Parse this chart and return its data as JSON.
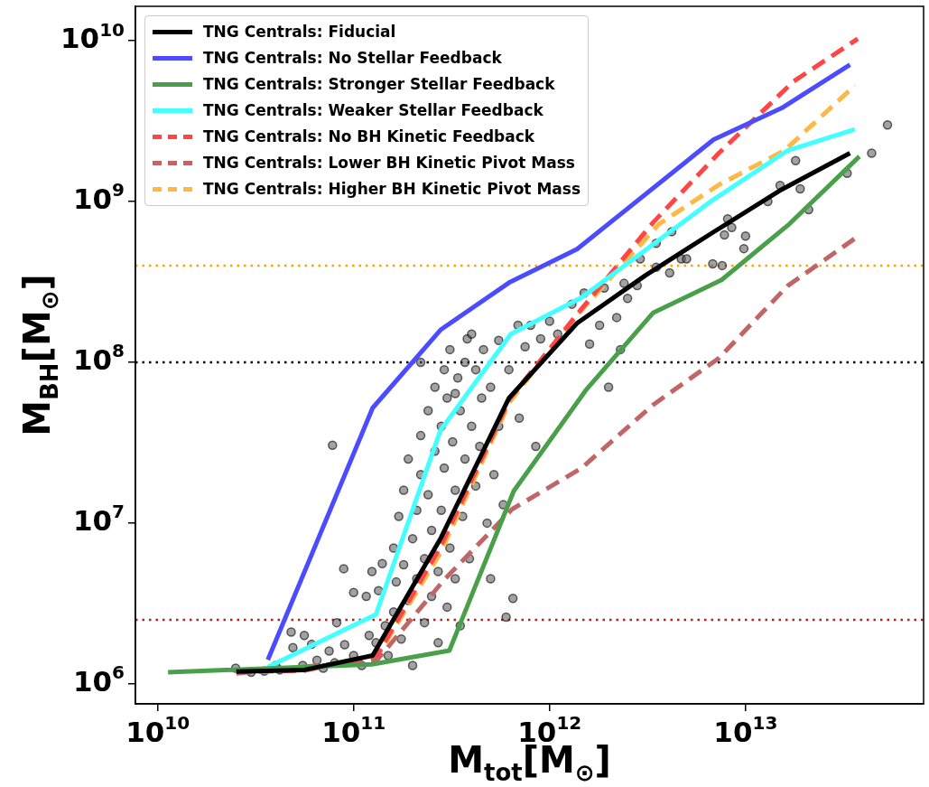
{
  "chart_data": {
    "type": "line",
    "xlabel": "M$_{tot}$[M$_{⊙}$]",
    "ylabel": "M$_{BH}$[M$_{⊙}$]",
    "log": "xy",
    "legend": "top left",
    "xlim": [
      7700000000.0,
      81000000000000.0
    ],
    "ylim": [
      750000.0,
      16400000000.0
    ],
    "xticks": [
      {
        "value": 10000000000.0,
        "label": "10$^{10}$"
      },
      {
        "value": 100000000000.0,
        "label": "10$^{11}$"
      },
      {
        "value": 1000000000000.0,
        "label": "10$^{12}$"
      },
      {
        "value": 10000000000000.0,
        "label": "10$^{13}$"
      }
    ],
    "yticks": [
      {
        "value": 1000000.0,
        "label": "10$^{6}$"
      },
      {
        "value": 10000000.0,
        "label": "10$^{7}$"
      },
      {
        "value": 100000000.0,
        "label": "10$^{8}$"
      },
      {
        "value": 1000000000.0,
        "label": "10$^{9}$"
      },
      {
        "value": 10000000000.0,
        "label": "10$^{10}$"
      }
    ],
    "ref_lines": [
      {
        "axis": "y",
        "value": 400000000.0,
        "color": "#ffa500",
        "line_style": "dotted"
      },
      {
        "axis": "y",
        "value": 100000000.0,
        "color": "#000000",
        "line_style": "dotted"
      },
      {
        "axis": "y",
        "value": 2500000.0,
        "color": "#b22222",
        "line_style": "dotted"
      }
    ],
    "series": [
      {
        "name": "TNG Centrals: Fiducial",
        "color": "#000000",
        "line_style": "solid",
        "x": [
          25200000000.0,
          56100000000.0,
          125000000000.0,
          279000000000.0,
          621000000000.0,
          1380000000000.0,
          3080000000000.0,
          6870000000000.0,
          15300000000000.0,
          34100000000000.0
        ],
        "values": [
          1190000.0,
          1220000.0,
          1500000.0,
          8100000.0,
          60000000.0,
          175000000.0,
          347000000.0,
          647000000.0,
          1190000000.0,
          2000000000.0
        ]
      },
      {
        "name": "TNG Centrals: No Stellar Feedback",
        "color": "#4b4bff",
        "line_style": "solid",
        "x": [
          36500000000.0,
          125000000000.0,
          279000000000.0,
          621000000000.0,
          1380000000000.0,
          6870000000000.0,
          15300000000000.0,
          34100000000000.0
        ],
        "values": [
          1410000.0,
          52000000.0,
          160000000.0,
          313000000.0,
          506000000.0,
          2430000000.0,
          3820000000.0,
          7110000000.0
        ]
      },
      {
        "name": "TNG Centrals: Stronger Stellar Feedback",
        "color": "#4aa04a",
        "line_style": "solid",
        "x": [
          11300000000.0,
          124000000000.0,
          308000000000.0,
          656000000000.0,
          1530000000000.0,
          3370000000000.0,
          7550000000000.0,
          16700000000000.0,
          38100000000000.0
        ],
        "values": [
          1180000.0,
          1320000.0,
          1610000.0,
          15800000.0,
          67000000.0,
          203000000.0,
          326000000.0,
          724000000.0,
          1910000000.0
        ]
      },
      {
        "name": "TNG Centrals: Weaker Stellar Feedback",
        "color": "#44ffff",
        "line_style": "solid",
        "x": [
          36500000000.0,
          130000000000.0,
          277000000000.0,
          634000000000.0,
          1450000000000.0,
          6780000000000.0,
          16400000000000.0,
          36100000000000.0
        ],
        "values": [
          1270000.0,
          2700000.0,
          37600000.0,
          150000000.0,
          252000000.0,
          1020000000.0,
          2080000000.0,
          2820000000.0
        ]
      },
      {
        "name": "TNG Centrals: No BH Kinetic Feedback",
        "color": "#ff4545",
        "line_style": "dashed",
        "x": [
          25200000000.0,
          56100000000.0,
          132000000000.0,
          277000000000.0,
          625000000000.0,
          1400000000000.0,
          3370000000000.0,
          7300000000000.0,
          17600000000000.0,
          37400000000000.0
        ],
        "values": [
          1190000.0,
          1210000.0,
          1510000.0,
          7100000.0,
          59000000.0,
          203000000.0,
          740000000.0,
          2000000000.0,
          5600000000.0,
          10300000000.0
        ]
      },
      {
        "name": "TNG Centrals: Lower BH Kinetic Pivot Mass",
        "color": "#c06666",
        "line_style": "dashed",
        "x": [
          25200000000.0,
          132000000000.0,
          288000000000.0,
          644000000000.0,
          1450000000000.0,
          3370000000000.0,
          7300000000000.0,
          16400000000000.0,
          36700000000000.0
        ],
        "values": [
          1160000.0,
          1410000.0,
          4400000.0,
          12200000.0,
          21900000.0,
          54300000.0,
          106000000.0,
          299000000.0,
          597000000.0
        ]
      },
      {
        "name": "TNG Centrals: Higher BH Kinetic Pivot Mass",
        "color": "#ffb846",
        "line_style": "dashed",
        "x": [
          25200000000.0,
          56100000000.0,
          132000000000.0,
          277000000000.0,
          625000000000.0,
          1400000000000.0,
          3610000000000.0,
          7300000000000.0,
          15800000000000.0,
          36100000000000.0
        ],
        "values": [
          1190000.0,
          1210000.0,
          1480000.0,
          6500000.0,
          56600000.0,
          200000000.0,
          724000000.0,
          1270000000.0,
          2080000000.0,
          5270000000.0
        ]
      },
      {
        "type": "scatter",
        "color": "#555555",
        "marker": "circle",
        "x": [
          25000000000.0,
          30000000000.0,
          35000000000.0,
          40000000000.0,
          42000000000.0,
          49000000000.0,
          48000000000.0,
          56000000000.0,
          55000000000.0,
          61000000000.0,
          65000000000.0,
          70000000000.0,
          75000000000.0,
          82000000000.0,
          80000000000.0,
          78000000000.0,
          89000000000.0,
          90000000000.0,
          100000000000.0,
          100000000000.0,
          110000000000.0,
          116000000000.0,
          124000000000.0,
          120000000000.0,
          130000000000.0,
          134000000000.0,
          140000000000.0,
          145000000000.0,
          150000000000.0,
          160000000000.0,
          160000000000.0,
          165000000000.0,
          170000000000.0,
          175000000000.0,
          180000000000.0,
          180000000000.0,
          190000000000.0,
          190000000000.0,
          200000000000.0,
          200000000000.0,
          210000000000.0,
          210000000000.0,
          220000000000.0,
          220000000000.0,
          230000000000.0,
          230000000000.0,
          240000000000.0,
          240000000000.0,
          250000000000.0,
          250000000000.0,
          260000000000.0,
          260000000000.0,
          270000000000.0,
          270000000000.0,
          280000000000.0,
          280000000000.0,
          290000000000.0,
          290000000000.0,
          300000000000.0,
          300000000000.0,
          310000000000.0,
          310000000000.0,
          320000000000.0,
          330000000000.0,
          330000000000.0,
          340000000000.0,
          350000000000.0,
          350000000000.0,
          360000000000.0,
          370000000000.0,
          370000000000.0,
          380000000000.0,
          390000000000.0,
          400000000000.0,
          400000000000.0,
          420000000000.0,
          420000000000.0,
          440000000000.0,
          450000000000.0,
          460000000000.0,
          480000000000.0,
          500000000000.0,
          500000000000.0,
          520000000000.0,
          550000000000.0,
          550000000000.0,
          580000000000.0,
          600000000000.0,
          620000000000.0,
          650000000000.0,
          690000000000.0,
          700000000000.0,
          750000000000.0,
          800000000000.0,
          850000000000.0,
          900000000000.0,
          1000000000000.0,
          1100000000000.0,
          1300000000000.0,
          1500000000000.0,
          1600000000000.0,
          1800000000000.0,
          1900000000000.0,
          2000000000000.0,
          2200000000000.0,
          2300000000000.0,
          2400000000000.0,
          2500000000000.0,
          2800000000000.0,
          2900000000000.0,
          3500000000000.0,
          3500000000000.0,
          4100000000000.0,
          4200000000000.0,
          4700000000000.0,
          5000000000000.0,
          6800000000000.0,
          7600000000000.0,
          7800000000000.0,
          8100000000000.0,
          8500000000000.0,
          9800000000000.0,
          10000000000000.0,
          13000000000000.0,
          15000000000000.0,
          18000000000000.0,
          19000000000000.0,
          21000000000000.0,
          33000000000000.0,
          44000000000000.0,
          53000000000000.0,
          220000000000.0,
          330000000000.0
        ],
        "values": [
          1250000.0,
          1180000.0,
          1200000.0,
          1300000.0,
          1220000.0,
          1680000.0,
          2100000.0,
          2000000.0,
          1300000.0,
          1760000.0,
          1400000.0,
          1250000.0,
          1600000.0,
          2400000.0,
          1350000.0,
          30500000.0,
          5200000.0,
          1750000.0,
          3700000.0,
          1500000.0,
          1300000.0,
          3500000.0,
          5000000.0,
          2000000.0,
          1800000.0,
          3800000.0,
          5600000.0,
          2300000.0,
          1500000.0,
          7000000.0,
          2800000.0,
          4300000.0,
          11000000.0,
          1900000.0,
          16000000.0,
          5500000.0,
          3300000.0,
          25000000.0,
          8000000.0,
          1300000.0,
          12000000.0,
          4500000.0,
          35000000.0,
          20000000.0,
          6000000.0,
          2400000.0,
          50000000.0,
          15000000.0,
          9000000.0,
          3500000.0,
          70000000.0,
          28000000.0,
          1800000.0,
          5000000.0,
          40000000.0,
          12000000.0,
          90000000.0,
          22000000.0,
          3000000.0,
          60000000.0,
          120000000.0,
          7000000.0,
          32000000.0,
          16000000.0,
          4500000.0,
          80000000.0,
          2300000.0,
          50000000.0,
          11000000.0,
          100000000.0,
          25000000.0,
          140000000.0,
          6000000.0,
          40000000.0,
          150000000.0,
          90000000.0,
          17000000.0,
          30000000.0,
          60000000.0,
          120000000.0,
          10000000.0,
          4500000.0,
          70000000.0,
          20000000.0,
          137000000.0,
          40000000.0,
          13000000.0,
          2600000.0,
          90000000.0,
          3400000.0,
          170000000.0,
          45000000.0,
          125000000.0,
          170000000.0,
          30000000.0,
          140000000.0,
          180000000.0,
          150000000.0,
          230000000.0,
          270000000.0,
          130000000.0,
          170000000.0,
          290000000.0,
          70000000.0,
          190000000.0,
          120000000.0,
          310000000.0,
          250000000.0,
          300000000.0,
          440000000.0,
          550000000.0,
          390000000.0,
          360000000.0,
          650000000.0,
          440000000.0,
          440000000.0,
          410000000.0,
          400000000.0,
          620000000.0,
          780000000.0,
          690000000.0,
          510000000.0,
          610000000.0,
          1000000000.0,
          1260000000.0,
          1800000000.0,
          1200000000.0,
          890000000.0,
          1500000000.0,
          2000000000.0,
          3000000000.0,
          100000000.0,
          64000000.0
        ]
      }
    ]
  }
}
